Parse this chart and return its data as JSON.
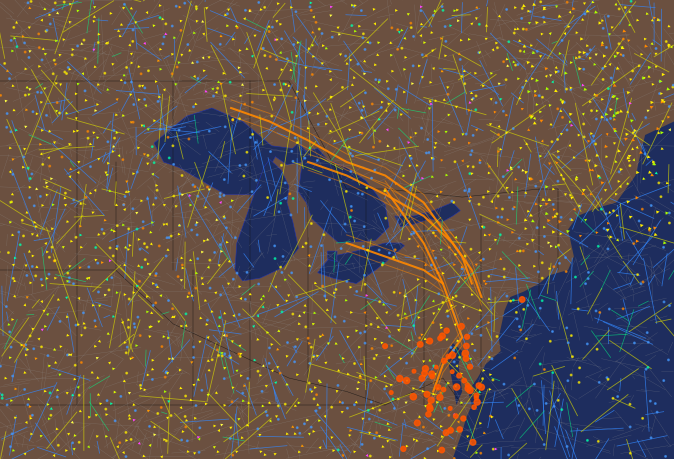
{
  "background_color": "#6b5040",
  "water_color": "#1e2d5e",
  "figsize": [
    6.74,
    4.59
  ],
  "dpi": 100,
  "seed": 42,
  "xlim": [
    -100,
    -65
  ],
  "ylim": [
    35,
    52
  ],
  "canada_color": "#7a6050",
  "border_color": "#1a1a1a",
  "grid_color": "#aaaaaa",
  "blue_line_color": "#4488ff",
  "orange_line_color": "#ff8800",
  "yellow_arrow_color": "#ffee00",
  "orange_hotspot_color": "#ff6600"
}
